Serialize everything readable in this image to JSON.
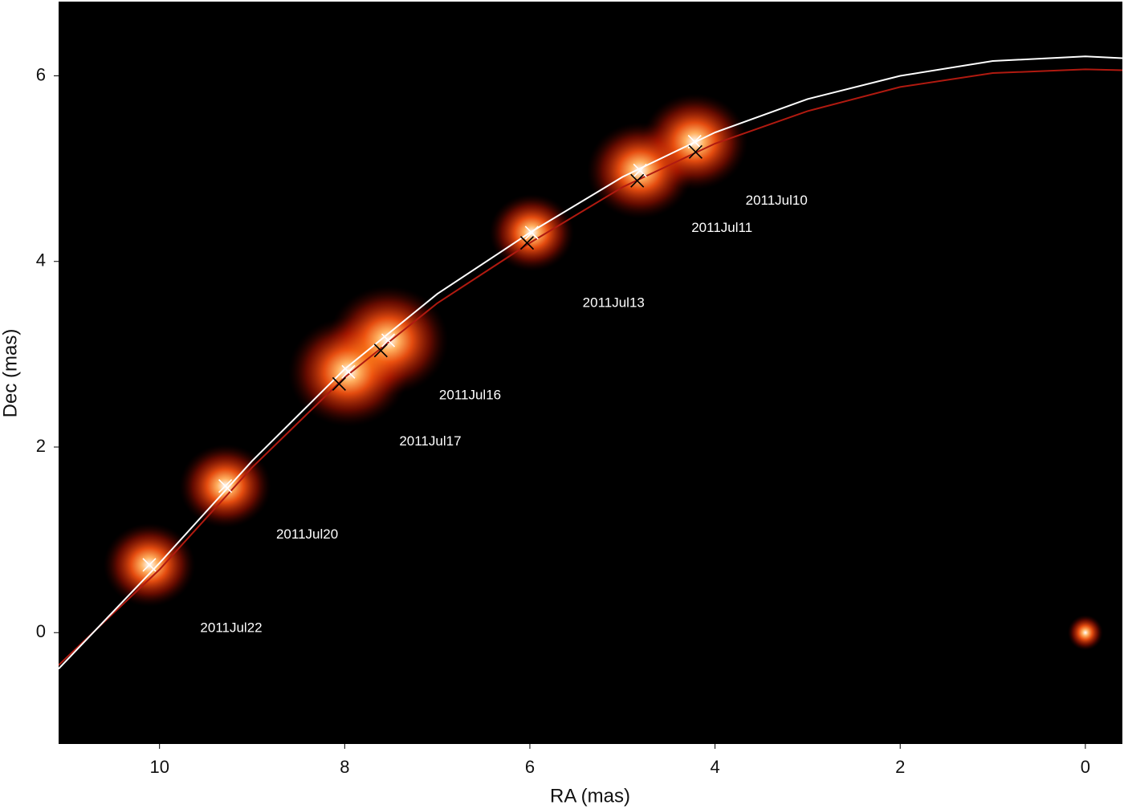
{
  "chart_data": {
    "type": "scatter",
    "xlabel": "RA (mas)",
    "ylabel": "Dec (mas)",
    "xlim": [
      11.09,
      -0.4
    ],
    "ylim": [
      -1.2,
      6.8
    ],
    "xticks": [
      10,
      8,
      6,
      4,
      2,
      0
    ],
    "yticks": [
      0,
      2,
      4,
      6
    ],
    "background": "#000000",
    "series": [
      {
        "color": "#ffffff",
        "x": [
          4.22,
          4.81,
          5.98,
          7.53,
          7.96,
          9.29,
          10.11
        ],
        "values": [
          5.29,
          4.98,
          4.31,
          3.15,
          2.81,
          1.58,
          0.73
        ]
      },
      {
        "color": "#000000",
        "x": [
          4.21,
          4.84,
          6.03,
          7.61,
          8.06
        ],
        "values": [
          5.18,
          4.87,
          4.2,
          3.04,
          2.68
        ]
      }
    ],
    "point_labels": [
      "2011Jul10",
      "2011Jul11",
      "2011Jul13",
      "2011Jul16",
      "2011Jul17",
      "2011Jul20",
      "2011Jul22"
    ],
    "curves": [
      {
        "color": "#b01a10",
        "x": [
          11.09,
          10,
          9,
          8,
          7,
          6,
          5,
          4,
          3,
          2,
          1,
          0,
          -0.4
        ],
        "values": [
          -0.35,
          0.68,
          1.78,
          2.75,
          3.55,
          4.2,
          4.8,
          5.27,
          5.62,
          5.88,
          6.03,
          6.07,
          6.06
        ]
      },
      {
        "color": "#ffffff",
        "x": [
          11.09,
          10,
          9,
          8,
          7,
          6,
          5,
          4,
          3,
          2,
          1,
          0,
          -0.4
        ],
        "values": [
          -0.39,
          0.75,
          1.85,
          2.84,
          3.65,
          4.31,
          4.91,
          5.39,
          5.75,
          6.0,
          6.16,
          6.21,
          6.19
        ]
      }
    ],
    "reference": {
      "x": 0,
      "y": 0
    }
  }
}
